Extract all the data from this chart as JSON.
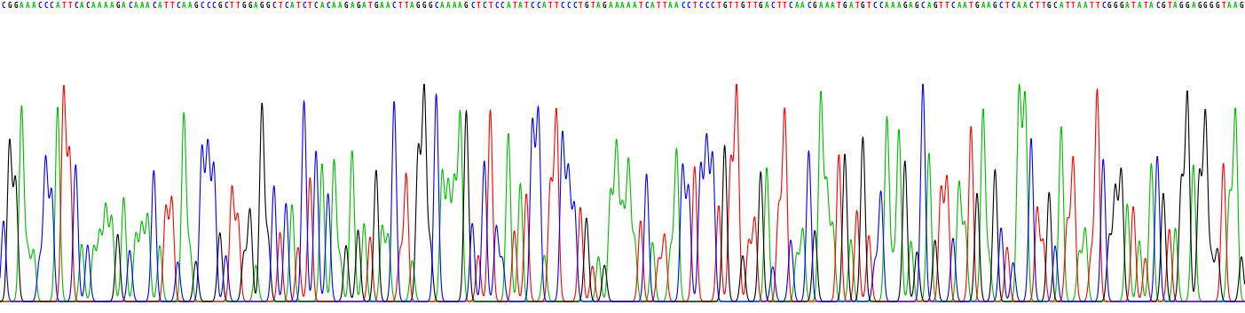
{
  "sequence": "CGGAAACCCATTCACAAAAGACAAACATTCAAGCCCGCTTGGAGGCTCATCTCACAAGAGATGAACTTAGGGCAAAAGCTCTCCATATCCATTCCCTGTAGAAAAATCATTAACCTCCCTGTTGTTGACTTCAACGAAATGATGTCCAAAGAGCAGTTCAATGAAGCTCAACTTGCATTAATTCGGGATATACGTAGGAGGGGTAAG",
  "bg_color": "#ffffff",
  "colors": {
    "A": "#00bb00",
    "T": "#ff0000",
    "G": "#000000",
    "C": "#0000ff"
  },
  "fig_width": 14.03,
  "fig_height": 3.53,
  "dpi": 100,
  "seq_fontsize": 5.5,
  "seed": 42
}
